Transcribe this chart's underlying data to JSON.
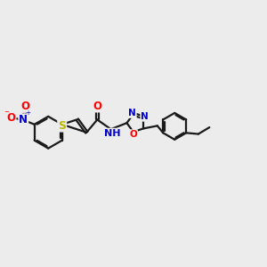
{
  "background_color": "#ececec",
  "bond_color": "#1a1a1a",
  "bond_width": 1.6,
  "dbl_sep": 0.055,
  "atom_colors": {
    "O": "#ff0000",
    "N": "#0000cc",
    "S": "#b8b800",
    "C": "#1a1a1a",
    "H": "#1a1a1a"
  },
  "fs": 8.5,
  "fig_w": 3.0,
  "fig_h": 3.0
}
